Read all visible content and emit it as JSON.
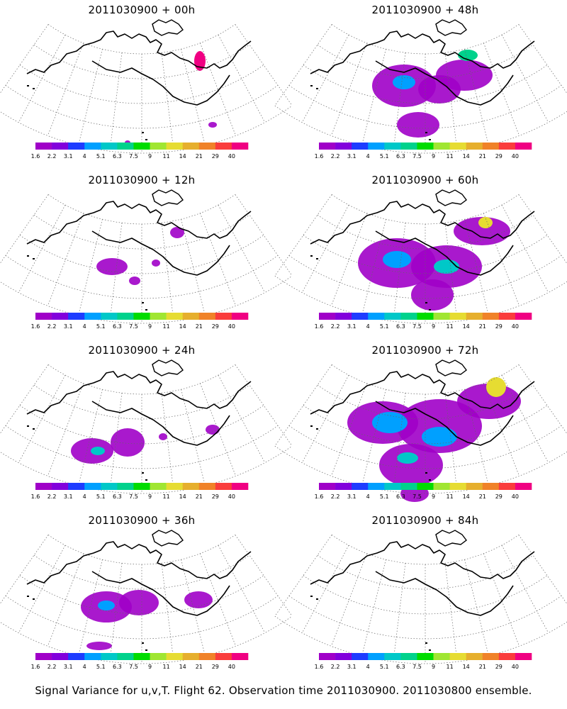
{
  "colorbar": {
    "labels": [
      "1.6",
      "2.2",
      "3.1",
      "4",
      "5.1",
      "6.3",
      "7.5",
      "9",
      "11",
      "14",
      "21",
      "29",
      "40"
    ],
    "colors": [
      "#a000c8",
      "#8200dc",
      "#1e3cff",
      "#00a0ff",
      "#00c8c8",
      "#00d28c",
      "#00dc00",
      "#a0e632",
      "#e6dc32",
      "#e6af2d",
      "#f08228",
      "#fa3c3c",
      "#f00082"
    ]
  },
  "panels": [
    {
      "title": "2011030900 + 00h",
      "level": 0
    },
    {
      "title": "2011030900 + 48h",
      "level": 4
    },
    {
      "title": "2011030900 + 12h",
      "level": 1
    },
    {
      "title": "2011030900 + 60h",
      "level": 5
    },
    {
      "title": "2011030900 + 24h",
      "level": 2
    },
    {
      "title": "2011030900 + 72h",
      "level": 6
    },
    {
      "title": "2011030900 + 36h",
      "level": 3
    },
    {
      "title": "2011030900 + 84h",
      "level": 7
    }
  ],
  "caption": "Signal Variance for u,v,T. Flight 62. Observation time 2011030900. 2011030800 ensemble."
}
